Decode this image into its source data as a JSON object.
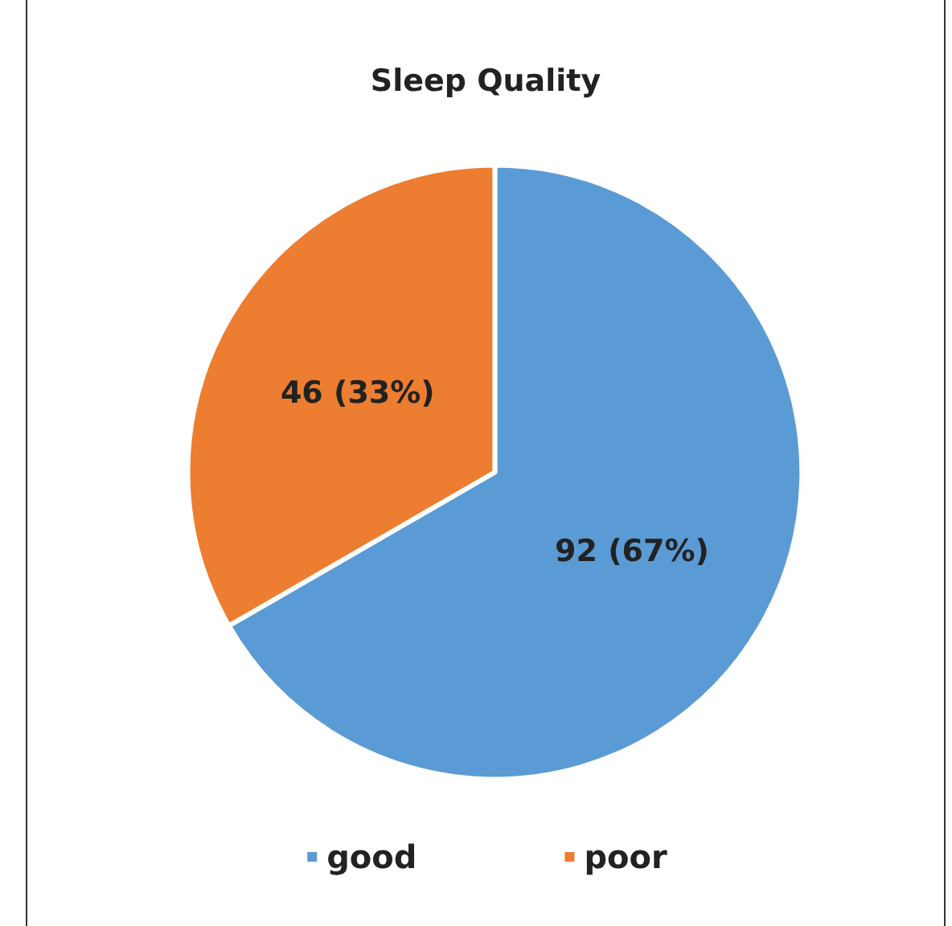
{
  "chart_data": {
    "type": "pie",
    "title": "Sleep Quality",
    "categories": [
      "good",
      "poor"
    ],
    "values": [
      92,
      46
    ],
    "colors": [
      "#5b9bd5",
      "#ed7d31"
    ],
    "value_labels": [
      "92 (67%)",
      "46 (33%)"
    ],
    "legend": "bottom"
  }
}
